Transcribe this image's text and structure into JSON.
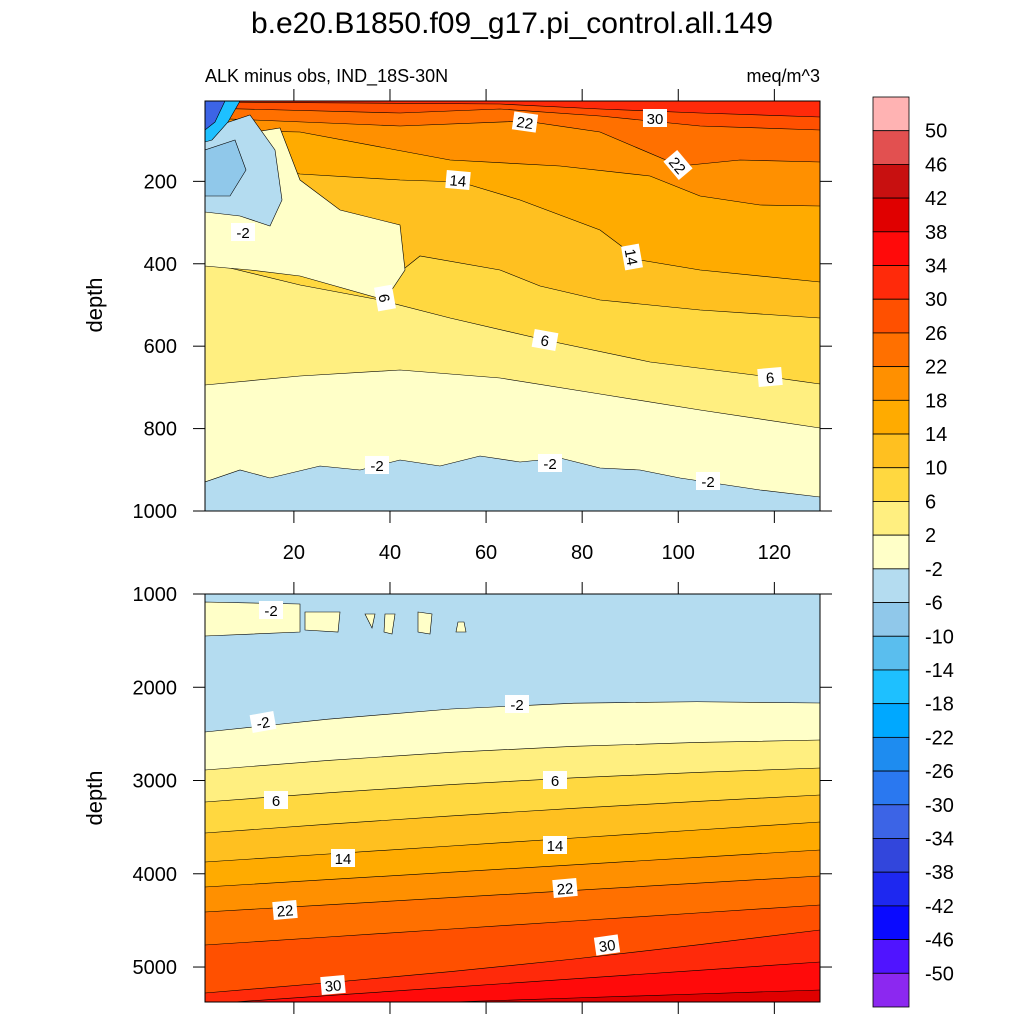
{
  "title": "b.e20.B1850.f09_g17.pi_control.all.149",
  "chart_data": [
    {
      "type": "contour",
      "subtitle_left": "ALK minus obs, IND_18S-30N",
      "subtitle_right": "meq/m^3",
      "y_label": "depth",
      "xlim": [
        1.5,
        129.5
      ],
      "xticks": [
        20,
        40,
        60,
        80,
        100,
        120
      ],
      "ylim": [
        5,
        1000
      ],
      "yticks": [
        200,
        400,
        600,
        800,
        1000
      ],
      "contour_labels": [
        30,
        22,
        22,
        14,
        14,
        -2,
        6,
        6,
        6,
        -2,
        -2,
        -2
      ]
    },
    {
      "type": "contour",
      "y_label": "depth",
      "xlim": [
        1.5,
        129.5
      ],
      "xticks": [
        20,
        40,
        60,
        80,
        100,
        120
      ],
      "ylim": [
        1000,
        5375
      ],
      "yticks": [
        1000,
        2000,
        3000,
        4000,
        5000
      ],
      "contour_labels": [
        -2,
        -2,
        -2,
        6,
        6,
        14,
        14,
        22,
        22,
        30,
        30
      ]
    }
  ],
  "colorbar": {
    "levels": [
      50,
      46,
      42,
      38,
      34,
      30,
      26,
      22,
      18,
      14,
      10,
      6,
      2,
      -2,
      -6,
      -10,
      -14,
      -18,
      -22,
      -26,
      -30,
      -34,
      -38,
      -42,
      -46,
      -50
    ],
    "colors": [
      "#ffb3b3",
      "#e25050",
      "#c81010",
      "#e00000",
      "#ff0a0a",
      "#ff2a0a",
      "#ff5000",
      "#ff7000",
      "#ff9000",
      "#ffab00",
      "#ffc020",
      "#ffd840",
      "#ffef80",
      "#ffffc8",
      "#b4dcf0",
      "#90c8ea",
      "#5abeee",
      "#1ec0ff",
      "#00a8ff",
      "#1e8cf0",
      "#2a78f0",
      "#3c64e6",
      "#3246dc",
      "#1e28f0",
      "#0a0aff",
      "#5014ff",
      "#8c28f0"
    ]
  }
}
